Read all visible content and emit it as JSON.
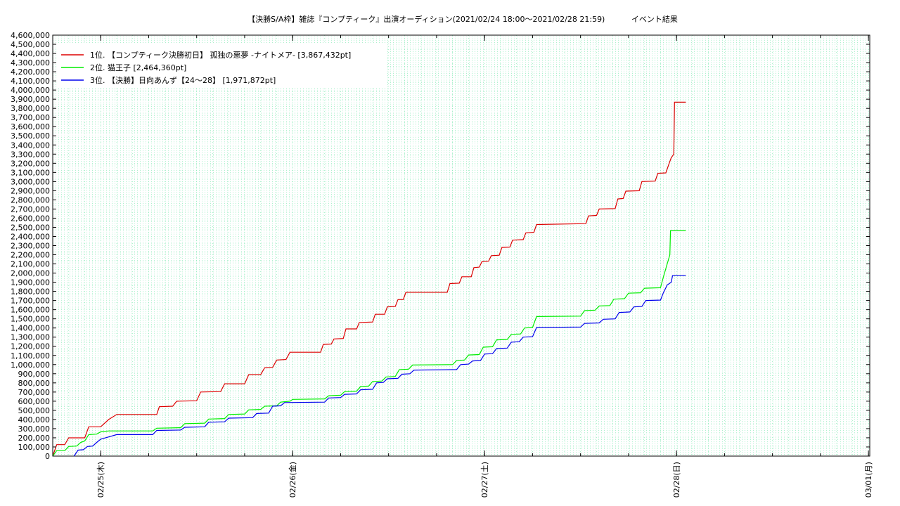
{
  "chart_data": {
    "type": "line",
    "title": "【決勝S/A枠】雑誌『コンプティーク』出演オーディション(2021/02/24 18:00～2021/02/28 21:59)",
    "title_suffix": "イベント結果",
    "ylim": [
      0,
      4600000
    ],
    "y_ticks": [
      "0",
      "100,000",
      "200,000",
      "300,000",
      "400,000",
      "500,000",
      "600,000",
      "700,000",
      "800,000",
      "900,000",
      "1,000,000",
      "1,100,000",
      "1,200,000",
      "1,300,000",
      "1,400,000",
      "1,500,000",
      "1,600,000",
      "1,700,000",
      "1,800,000",
      "1,900,000",
      "2,000,000",
      "2,100,000",
      "2,200,000",
      "2,300,000",
      "2,400,000",
      "2,500,000",
      "2,600,000",
      "2,700,000",
      "2,800,000",
      "2,900,000",
      "3,000,000",
      "3,100,000",
      "3,200,000",
      "3,300,000",
      "3,400,000",
      "3,500,000",
      "3,600,000",
      "3,700,000",
      "3,800,000",
      "3,900,000",
      "4,000,000",
      "4,100,000",
      "4,200,000",
      "4,300,000",
      "4,400,000",
      "4,500,000",
      "4,600,000"
    ],
    "xlim": [
      "2021-02-24T18:00",
      "2021-03-01T00:10"
    ],
    "x_ticks": [
      {
        "at": "2021-02-25T00:00",
        "label": "02/25(木)"
      },
      {
        "at": "2021-02-26T00:00",
        "label": "02/26(金)"
      },
      {
        "at": "2021-02-27T00:00",
        "label": "02/27(土)"
      },
      {
        "at": "2021-02-28T00:00",
        "label": "02/28(日)"
      },
      {
        "at": "2021-03-01T00:00",
        "label": "03/01(月)"
      }
    ],
    "grid": true,
    "legend_position": "top-left",
    "series": [
      {
        "name": "1位. 【コンプティーク決勝初日】 孤独の悪夢 -ナイトメア- [3,867,432pt]",
        "color": "#dd0000",
        "points": [
          [
            "2021-02-24T18:00",
            0
          ],
          [
            "2021-02-24T18:30",
            125000
          ],
          [
            "2021-02-24T19:30",
            125000
          ],
          [
            "2021-02-24T20:00",
            200000
          ],
          [
            "2021-02-24T22:00",
            200000
          ],
          [
            "2021-02-24T22:30",
            320000
          ],
          [
            "2021-02-25T00:00",
            320000
          ],
          [
            "2021-02-25T01:00",
            400000
          ],
          [
            "2021-02-25T02:00",
            455000
          ],
          [
            "2021-02-25T07:00",
            455000
          ],
          [
            "2021-02-25T07:20",
            540000
          ],
          [
            "2021-02-25T09:00",
            545000
          ],
          [
            "2021-02-25T09:30",
            600000
          ],
          [
            "2021-02-25T12:00",
            605000
          ],
          [
            "2021-02-25T12:30",
            700000
          ],
          [
            "2021-02-25T15:00",
            705000
          ],
          [
            "2021-02-25T15:30",
            790000
          ],
          [
            "2021-02-25T18:00",
            790000
          ],
          [
            "2021-02-25T18:30",
            890000
          ],
          [
            "2021-02-25T20:00",
            890000
          ],
          [
            "2021-02-25T20:30",
            965000
          ],
          [
            "2021-02-25T21:30",
            970000
          ],
          [
            "2021-02-25T22:00",
            1050000
          ],
          [
            "2021-02-25T23:10",
            1055000
          ],
          [
            "2021-02-25T23:40",
            1135000
          ],
          [
            "2021-02-26T03:30",
            1135000
          ],
          [
            "2021-02-26T03:50",
            1220000
          ],
          [
            "2021-02-26T04:50",
            1225000
          ],
          [
            "2021-02-26T05:10",
            1280000
          ],
          [
            "2021-02-26T06:20",
            1285000
          ],
          [
            "2021-02-26T06:40",
            1390000
          ],
          [
            "2021-02-26T08:00",
            1390000
          ],
          [
            "2021-02-26T08:20",
            1460000
          ],
          [
            "2021-02-26T10:00",
            1465000
          ],
          [
            "2021-02-26T10:20",
            1550000
          ],
          [
            "2021-02-26T11:30",
            1550000
          ],
          [
            "2021-02-26T11:50",
            1630000
          ],
          [
            "2021-02-26T12:50",
            1635000
          ],
          [
            "2021-02-26T13:10",
            1710000
          ],
          [
            "2021-02-26T13:50",
            1710000
          ],
          [
            "2021-02-26T14:10",
            1790000
          ],
          [
            "2021-02-26T19:20",
            1790000
          ],
          [
            "2021-02-26T19:40",
            1885000
          ],
          [
            "2021-02-26T20:50",
            1890000
          ],
          [
            "2021-02-26T21:10",
            1960000
          ],
          [
            "2021-02-26T22:20",
            1960000
          ],
          [
            "2021-02-26T22:40",
            2060000
          ],
          [
            "2021-02-26T23:20",
            2065000
          ],
          [
            "2021-02-26T23:40",
            2125000
          ],
          [
            "2021-02-27T00:30",
            2130000
          ],
          [
            "2021-02-27T00:50",
            2190000
          ],
          [
            "2021-02-27T01:50",
            2195000
          ],
          [
            "2021-02-27T02:10",
            2280000
          ],
          [
            "2021-02-27T03:10",
            2285000
          ],
          [
            "2021-02-27T03:30",
            2360000
          ],
          [
            "2021-02-27T04:50",
            2365000
          ],
          [
            "2021-02-27T05:10",
            2440000
          ],
          [
            "2021-02-27T06:10",
            2445000
          ],
          [
            "2021-02-27T06:30",
            2530000
          ],
          [
            "2021-02-27T12:40",
            2540000
          ],
          [
            "2021-02-27T13:00",
            2625000
          ],
          [
            "2021-02-27T14:00",
            2630000
          ],
          [
            "2021-02-27T14:20",
            2700000
          ],
          [
            "2021-02-27T16:20",
            2705000
          ],
          [
            "2021-02-27T16:40",
            2810000
          ],
          [
            "2021-02-27T17:20",
            2815000
          ],
          [
            "2021-02-27T17:40",
            2895000
          ],
          [
            "2021-02-27T19:20",
            2900000
          ],
          [
            "2021-02-27T19:40",
            3000000
          ],
          [
            "2021-02-27T21:20",
            3005000
          ],
          [
            "2021-02-27T21:40",
            3090000
          ],
          [
            "2021-02-27T22:40",
            3095000
          ],
          [
            "2021-02-27T23:00",
            3180000
          ],
          [
            "2021-02-27T23:20",
            3260000
          ],
          [
            "2021-02-27T23:40",
            3300000
          ],
          [
            "2021-02-27T23:45",
            3867432
          ],
          [
            "2021-02-28T01:10",
            3867432
          ]
        ]
      },
      {
        "name": "2位. 猫王子 [2,464,360pt]",
        "color": "#00ee00",
        "points": [
          [
            "2021-02-24T18:00",
            0
          ],
          [
            "2021-02-24T18:30",
            60000
          ],
          [
            "2021-02-24T19:30",
            60000
          ],
          [
            "2021-02-24T20:00",
            105000
          ],
          [
            "2021-02-24T21:00",
            110000
          ],
          [
            "2021-02-24T21:30",
            150000
          ],
          [
            "2021-02-24T22:00",
            165000
          ],
          [
            "2021-02-24T22:30",
            235000
          ],
          [
            "2021-02-24T23:30",
            240000
          ],
          [
            "2021-02-25T00:00",
            265000
          ],
          [
            "2021-02-25T01:00",
            275000
          ],
          [
            "2021-02-25T06:30",
            275000
          ],
          [
            "2021-02-25T07:00",
            305000
          ],
          [
            "2021-02-25T10:00",
            310000
          ],
          [
            "2021-02-25T10:30",
            355000
          ],
          [
            "2021-02-25T13:00",
            360000
          ],
          [
            "2021-02-25T13:30",
            405000
          ],
          [
            "2021-02-25T15:30",
            410000
          ],
          [
            "2021-02-25T16:00",
            455000
          ],
          [
            "2021-02-25T18:00",
            460000
          ],
          [
            "2021-02-25T18:30",
            505000
          ],
          [
            "2021-02-25T20:00",
            510000
          ],
          [
            "2021-02-25T20:30",
            545000
          ],
          [
            "2021-02-25T22:00",
            550000
          ],
          [
            "2021-02-25T22:30",
            590000
          ],
          [
            "2021-02-25T23:40",
            600000
          ],
          [
            "2021-02-26T00:00",
            620000
          ],
          [
            "2021-02-26T04:00",
            625000
          ],
          [
            "2021-02-26T04:30",
            660000
          ],
          [
            "2021-02-26T06:00",
            665000
          ],
          [
            "2021-02-26T06:30",
            705000
          ],
          [
            "2021-02-26T08:00",
            710000
          ],
          [
            "2021-02-26T08:30",
            760000
          ],
          [
            "2021-02-26T09:30",
            765000
          ],
          [
            "2021-02-26T10:00",
            815000
          ],
          [
            "2021-02-26T11:10",
            820000
          ],
          [
            "2021-02-26T11:40",
            865000
          ],
          [
            "2021-02-26T12:50",
            870000
          ],
          [
            "2021-02-26T13:20",
            945000
          ],
          [
            "2021-02-26T14:30",
            950000
          ],
          [
            "2021-02-26T15:00",
            995000
          ],
          [
            "2021-02-26T20:00",
            1000000
          ],
          [
            "2021-02-26T20:30",
            1045000
          ],
          [
            "2021-02-26T21:30",
            1050000
          ],
          [
            "2021-02-26T22:00",
            1105000
          ],
          [
            "2021-02-26T23:20",
            1110000
          ],
          [
            "2021-02-26T23:50",
            1190000
          ],
          [
            "2021-02-27T01:00",
            1195000
          ],
          [
            "2021-02-27T01:30",
            1270000
          ],
          [
            "2021-02-27T02:50",
            1275000
          ],
          [
            "2021-02-27T03:20",
            1330000
          ],
          [
            "2021-02-27T04:30",
            1335000
          ],
          [
            "2021-02-27T05:00",
            1400000
          ],
          [
            "2021-02-27T06:00",
            1405000
          ],
          [
            "2021-02-27T06:30",
            1525000
          ],
          [
            "2021-02-27T12:00",
            1530000
          ],
          [
            "2021-02-27T12:30",
            1590000
          ],
          [
            "2021-02-27T13:50",
            1595000
          ],
          [
            "2021-02-27T14:20",
            1640000
          ],
          [
            "2021-02-27T15:40",
            1645000
          ],
          [
            "2021-02-27T16:10",
            1715000
          ],
          [
            "2021-02-27T17:30",
            1720000
          ],
          [
            "2021-02-27T18:00",
            1780000
          ],
          [
            "2021-02-27T19:30",
            1785000
          ],
          [
            "2021-02-27T20:00",
            1835000
          ],
          [
            "2021-02-27T22:00",
            1840000
          ],
          [
            "2021-02-27T22:20",
            1950000
          ],
          [
            "2021-02-27T22:50",
            2100000
          ],
          [
            "2021-02-27T23:10",
            2200000
          ],
          [
            "2021-02-27T23:15",
            2464360
          ],
          [
            "2021-02-28T01:10",
            2464360
          ]
        ]
      },
      {
        "name": "3位. 【決勝】日向あんず【24〜28】 [1,971,872pt]",
        "color": "#0000ee",
        "points": [
          [
            "2021-02-24T20:40",
            0
          ],
          [
            "2021-02-24T21:10",
            65000
          ],
          [
            "2021-02-24T21:50",
            70000
          ],
          [
            "2021-02-24T22:20",
            105000
          ],
          [
            "2021-02-24T23:00",
            110000
          ],
          [
            "2021-02-24T23:30",
            150000
          ],
          [
            "2021-02-25T00:00",
            185000
          ],
          [
            "2021-02-25T01:00",
            210000
          ],
          [
            "2021-02-25T02:00",
            235000
          ],
          [
            "2021-02-25T06:30",
            235000
          ],
          [
            "2021-02-25T07:00",
            280000
          ],
          [
            "2021-02-25T10:00",
            285000
          ],
          [
            "2021-02-25T10:30",
            315000
          ],
          [
            "2021-02-25T13:00",
            320000
          ],
          [
            "2021-02-25T13:30",
            370000
          ],
          [
            "2021-02-25T15:30",
            375000
          ],
          [
            "2021-02-25T16:00",
            415000
          ],
          [
            "2021-02-25T19:00",
            420000
          ],
          [
            "2021-02-25T19:30",
            465000
          ],
          [
            "2021-02-25T21:00",
            470000
          ],
          [
            "2021-02-25T21:30",
            545000
          ],
          [
            "2021-02-25T22:30",
            550000
          ],
          [
            "2021-02-25T23:00",
            585000
          ],
          [
            "2021-02-26T04:00",
            590000
          ],
          [
            "2021-02-26T04:30",
            635000
          ],
          [
            "2021-02-26T06:00",
            640000
          ],
          [
            "2021-02-26T06:30",
            675000
          ],
          [
            "2021-02-26T08:00",
            680000
          ],
          [
            "2021-02-26T08:30",
            725000
          ],
          [
            "2021-02-26T10:00",
            730000
          ],
          [
            "2021-02-26T10:30",
            800000
          ],
          [
            "2021-02-26T11:20",
            805000
          ],
          [
            "2021-02-26T11:50",
            845000
          ],
          [
            "2021-02-26T13:10",
            850000
          ],
          [
            "2021-02-26T13:40",
            895000
          ],
          [
            "2021-02-26T14:40",
            900000
          ],
          [
            "2021-02-26T15:10",
            940000
          ],
          [
            "2021-02-26T20:30",
            945000
          ],
          [
            "2021-02-26T21:00",
            1000000
          ],
          [
            "2021-02-26T22:00",
            1005000
          ],
          [
            "2021-02-26T22:30",
            1040000
          ],
          [
            "2021-02-26T23:30",
            1045000
          ],
          [
            "2021-02-27T00:00",
            1115000
          ],
          [
            "2021-02-27T01:00",
            1120000
          ],
          [
            "2021-02-27T01:30",
            1175000
          ],
          [
            "2021-02-27T02:50",
            1180000
          ],
          [
            "2021-02-27T03:20",
            1245000
          ],
          [
            "2021-02-27T04:20",
            1250000
          ],
          [
            "2021-02-27T04:50",
            1300000
          ],
          [
            "2021-02-27T06:00",
            1305000
          ],
          [
            "2021-02-27T06:30",
            1405000
          ],
          [
            "2021-02-27T12:00",
            1410000
          ],
          [
            "2021-02-27T12:30",
            1450000
          ],
          [
            "2021-02-27T14:20",
            1455000
          ],
          [
            "2021-02-27T14:50",
            1495000
          ],
          [
            "2021-02-27T16:20",
            1500000
          ],
          [
            "2021-02-27T16:50",
            1570000
          ],
          [
            "2021-02-27T18:10",
            1575000
          ],
          [
            "2021-02-27T18:40",
            1630000
          ],
          [
            "2021-02-27T19:40",
            1635000
          ],
          [
            "2021-02-27T20:10",
            1700000
          ],
          [
            "2021-02-27T22:00",
            1705000
          ],
          [
            "2021-02-27T22:20",
            1780000
          ],
          [
            "2021-02-27T22:50",
            1870000
          ],
          [
            "2021-02-27T23:20",
            1900000
          ],
          [
            "2021-02-27T23:30",
            1971872
          ],
          [
            "2021-02-28T01:10",
            1971872
          ]
        ]
      }
    ]
  }
}
